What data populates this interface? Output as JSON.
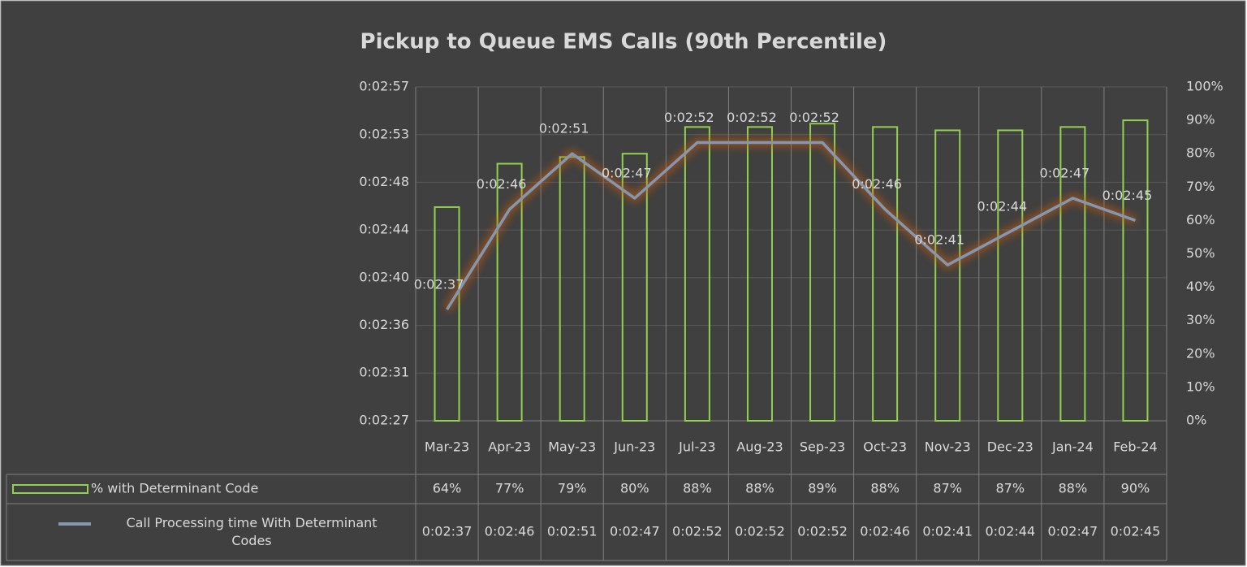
{
  "chart_data": {
    "type": "combo",
    "title": "Pickup to Queue EMS Calls (90th Percentile)",
    "categories": [
      "Mar-23",
      "Apr-23",
      "May-23",
      "Jun-23",
      "Jul-23",
      "Aug-23",
      "Sep-23",
      "Oct-23",
      "Nov-23",
      "Dec-23",
      "Jan-24",
      "Feb-24"
    ],
    "series": [
      {
        "name": "% with Determinant Code",
        "type": "bar",
        "axis": "y2",
        "color": "#92d050",
        "values": [
          64,
          77,
          79,
          80,
          88,
          88,
          89,
          88,
          87,
          87,
          88,
          90
        ],
        "value_labels": [
          "64%",
          "77%",
          "79%",
          "80%",
          "88%",
          "88%",
          "89%",
          "88%",
          "87%",
          "87%",
          "88%",
          "90%"
        ]
      },
      {
        "name": "Call Processing time With  Determinant Codes",
        "type": "line",
        "color": "#8497b0",
        "values": [
          157,
          166,
          171,
          167,
          172,
          172,
          172,
          166,
          161,
          164,
          167,
          165
        ],
        "value_labels": [
          "0:02:37",
          "0:02:46",
          "0:02:51",
          "0:02:47",
          "0:02:52",
          "0:02:52",
          "0:02:52",
          "0:02:46",
          "0:02:41",
          "0:02:44",
          "0:02:47",
          "0:02:45"
        ]
      }
    ],
    "ylim": [
      147,
      177
    ],
    "yticks": [
      {
        "value": 147,
        "label": "0:02:27"
      },
      {
        "value": 151.29,
        "label": "0:02:31"
      },
      {
        "value": 155.57,
        "label": "0:02:36"
      },
      {
        "value": 159.86,
        "label": "0:02:40"
      },
      {
        "value": 164.14,
        "label": "0:02:44"
      },
      {
        "value": 168.43,
        "label": "0:02:48"
      },
      {
        "value": 172.71,
        "label": "0:02:53"
      },
      {
        "value": 177,
        "label": "0:02:57"
      }
    ],
    "y2lim": [
      0,
      100
    ],
    "y2ticks": [
      {
        "value": 0,
        "label": "0%"
      },
      {
        "value": 10,
        "label": "10%"
      },
      {
        "value": 20,
        "label": "20%"
      },
      {
        "value": 30,
        "label": "30%"
      },
      {
        "value": 40,
        "label": "40%"
      },
      {
        "value": 50,
        "label": "50%"
      },
      {
        "value": 60,
        "label": "60%"
      },
      {
        "value": 70,
        "label": "70%"
      },
      {
        "value": 80,
        "label": "80%"
      },
      {
        "value": 90,
        "label": "90%"
      },
      {
        "value": 100,
        "label": "100%"
      }
    ],
    "grid": true
  }
}
